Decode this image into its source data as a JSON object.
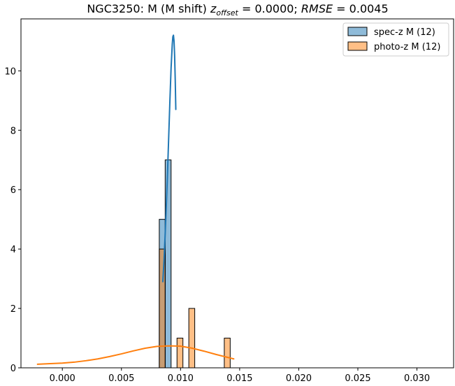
{
  "chart_data": {
    "type": "bar",
    "title": {
      "prefix": "NGC3250: M (M shift) ",
      "zvar": "z",
      "zsub": "offset",
      "zvalue": " = 0.0000; ",
      "rmse": "RMSE",
      "rmsevalue": " = 0.0045"
    },
    "xlabel": "",
    "ylabel": "",
    "xlim": [
      -0.0035,
      0.0331
    ],
    "ylim": [
      0,
      11.75
    ],
    "xticks": [
      0.0,
      0.005,
      0.01,
      0.015,
      0.02,
      0.025,
      0.03
    ],
    "xtick_labels": [
      "0.000",
      "0.005",
      "0.010",
      "0.015",
      "0.020",
      "0.025",
      "0.030"
    ],
    "yticks": [
      0,
      2,
      4,
      6,
      8,
      10
    ],
    "ytick_labels": [
      "0",
      "2",
      "4",
      "6",
      "8",
      "10"
    ],
    "grid": false,
    "legend_position": "upper right",
    "bin_width": 0.0005,
    "series": [
      {
        "name": "spec-z M (12)",
        "color": "#1f77b4",
        "bin_edges": [
          0.0082,
          0.0087,
          0.0092,
          0.0097,
          0.0102,
          0.0107,
          0.0112,
          0.0117,
          0.0122,
          0.0127,
          0.0132,
          0.0137,
          0.0142,
          0.0147,
          0.0152,
          0.0157,
          0.0162,
          0.0167,
          0.0172,
          0.0177,
          0.0182,
          0.0187,
          0.0192,
          0.0197,
          0.0202,
          0.0207,
          0.0212,
          0.0217,
          0.0222,
          0.0227,
          0.0232,
          0.0237,
          0.0242,
          0.0247,
          0.0252,
          0.0257,
          0.0262,
          0.0267,
          0.0272,
          0.0277,
          0.0282,
          0.0287,
          0.0292,
          0.0297,
          0.0302,
          0.0307,
          0.0312
        ],
        "counts": [
          5,
          7,
          0,
          0,
          0,
          0,
          0,
          0,
          0,
          0,
          0,
          0,
          0,
          0,
          0,
          0,
          0,
          0,
          0,
          0,
          0,
          0,
          0,
          0,
          0,
          0,
          0,
          0,
          0,
          0,
          0,
          0,
          0,
          0,
          0,
          0,
          0,
          0,
          0,
          0,
          0,
          0,
          0,
          0,
          0,
          0
        ],
        "kde": {
          "x": [
            0.0085,
            0.0086,
            0.0087,
            0.0088,
            0.0089,
            0.009,
            0.0091,
            0.0092,
            0.0093,
            0.00935,
            0.0094,
            0.00945,
            0.0095,
            0.00955,
            0.0096
          ],
          "y": [
            2.9,
            3.6,
            4.5,
            5.5,
            6.6,
            7.8,
            9.0,
            10.1,
            10.9,
            11.15,
            11.2,
            11.0,
            10.5,
            9.7,
            8.7
          ]
        }
      },
      {
        "name": "photo-z M (12)",
        "color": "#ff7f0e",
        "bin_edges": [
          0.0082,
          0.0087,
          0.0092,
          0.0097,
          0.0102,
          0.0107,
          0.0112,
          0.0117,
          0.0122,
          0.0127,
          0.0132,
          0.0137,
          0.0142,
          0.0147
        ],
        "counts": [
          4,
          0,
          0,
          1,
          0,
          2,
          0,
          0,
          0,
          0,
          0,
          1,
          0
        ],
        "kde": {
          "x": [
            -0.0021,
            -0.001,
            0.0,
            0.001,
            0.002,
            0.003,
            0.004,
            0.005,
            0.006,
            0.007,
            0.008,
            0.009,
            0.01,
            0.011,
            0.012,
            0.013,
            0.014,
            0.0145
          ],
          "y": [
            0.12,
            0.14,
            0.16,
            0.19,
            0.24,
            0.3,
            0.38,
            0.47,
            0.57,
            0.66,
            0.72,
            0.74,
            0.73,
            0.66,
            0.56,
            0.45,
            0.35,
            0.3
          ]
        }
      }
    ]
  }
}
